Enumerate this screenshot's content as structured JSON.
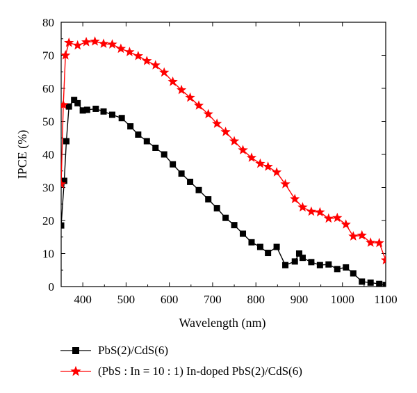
{
  "chart_data": {
    "type": "line",
    "title": "",
    "xlabel": "Wavelength (nm)",
    "ylabel": "IPCE (%)",
    "xlim": [
      350,
      1100
    ],
    "ylim": [
      0,
      80
    ],
    "xticks": [
      "400",
      "500",
      "600",
      "700",
      "800",
      "900",
      "1000",
      "1100"
    ],
    "yticks": [
      "0",
      "10",
      "20",
      "30",
      "40",
      "50",
      "60",
      "70",
      "80"
    ],
    "legend_position": "bottom",
    "grid": false,
    "series": [
      {
        "name": "PbS(2)/CdS(6)",
        "color": "#000000",
        "marker": "square",
        "x": [
          350,
          357,
          362,
          368,
          380,
          388,
          400,
          410,
          430,
          448,
          468,
          490,
          510,
          528,
          548,
          568,
          588,
          608,
          628,
          648,
          668,
          690,
          710,
          730,
          750,
          770,
          790,
          810,
          828,
          848,
          868,
          890,
          900,
          908,
          928,
          948,
          968,
          988,
          1008,
          1025,
          1045,
          1065,
          1085,
          1100
        ],
        "y": [
          18.5,
          32,
          44,
          54.5,
          56.5,
          55.5,
          53.3,
          53.5,
          53.8,
          53,
          52,
          51,
          48.5,
          46,
          44,
          42,
          40,
          37,
          34.2,
          31.7,
          29.2,
          26.4,
          23.7,
          20.8,
          18.6,
          16,
          13.4,
          12,
          10.2,
          12,
          6.5,
          7.6,
          10,
          8.7,
          7.4,
          6.5,
          6.7,
          5.3,
          5.8,
          4,
          1.5,
          1.2,
          0.8,
          0.5
        ]
      },
      {
        "name": "(PbS : In = 10 : 1) In-doped PbS(2)/CdS(6)",
        "color": "#ff0000",
        "marker": "star",
        "x": [
          350,
          355,
          360,
          368,
          388,
          408,
          428,
          448,
          468,
          488,
          508,
          528,
          548,
          568,
          588,
          608,
          628,
          648,
          668,
          690,
          710,
          730,
          750,
          770,
          790,
          810,
          828,
          848,
          868,
          890,
          908,
          928,
          948,
          968,
          988,
          1008,
          1025,
          1045,
          1065,
          1085,
          1100
        ],
        "y": [
          31,
          55,
          70,
          73.8,
          73,
          74,
          74.2,
          73.5,
          73.3,
          72,
          71,
          69.8,
          68.3,
          67,
          64.8,
          62,
          59.5,
          57.2,
          54.8,
          52.2,
          49.3,
          46.8,
          44,
          41.3,
          39,
          37.2,
          36.3,
          34.6,
          31,
          26.5,
          24,
          22.7,
          22.5,
          20.6,
          20.8,
          18.8,
          15.2,
          15.5,
          13.3,
          13.2,
          8
        ]
      }
    ]
  }
}
